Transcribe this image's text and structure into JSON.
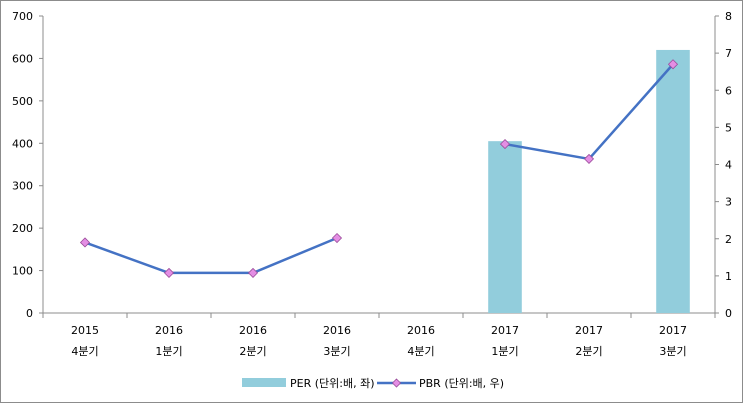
{
  "chart_data": {
    "type": "bar",
    "categories": [
      [
        "2015",
        "4분기"
      ],
      [
        "2016",
        "1분기"
      ],
      [
        "2016",
        "2분기"
      ],
      [
        "2016",
        "3분기"
      ],
      [
        "2016",
        "4분기"
      ],
      [
        "2017",
        "1분기"
      ],
      [
        "2017",
        "2분기"
      ],
      [
        "2017",
        "3분기"
      ]
    ],
    "series": [
      {
        "name": "PER (단위:배, 좌)",
        "type": "bar",
        "axis": "left",
        "color": "#92cddc",
        "values": [
          null,
          null,
          null,
          null,
          null,
          405,
          null,
          620
        ]
      },
      {
        "name": "PBR (단위:배, 우)",
        "type": "line",
        "axis": "right",
        "color": "#4472c4",
        "marker_color": "#e48ee4",
        "values": [
          1.9,
          1.08,
          1.08,
          2.02,
          null,
          4.55,
          4.15,
          6.7
        ]
      }
    ],
    "ylim_left": [
      0,
      700
    ],
    "yticks_left": [
      0,
      100,
      200,
      300,
      400,
      500,
      600,
      700
    ],
    "ylim_right": [
      0,
      8
    ],
    "yticks_right": [
      0,
      1,
      2,
      3,
      4,
      5,
      6,
      7,
      8
    ],
    "grid": false,
    "legend": "bottom"
  }
}
